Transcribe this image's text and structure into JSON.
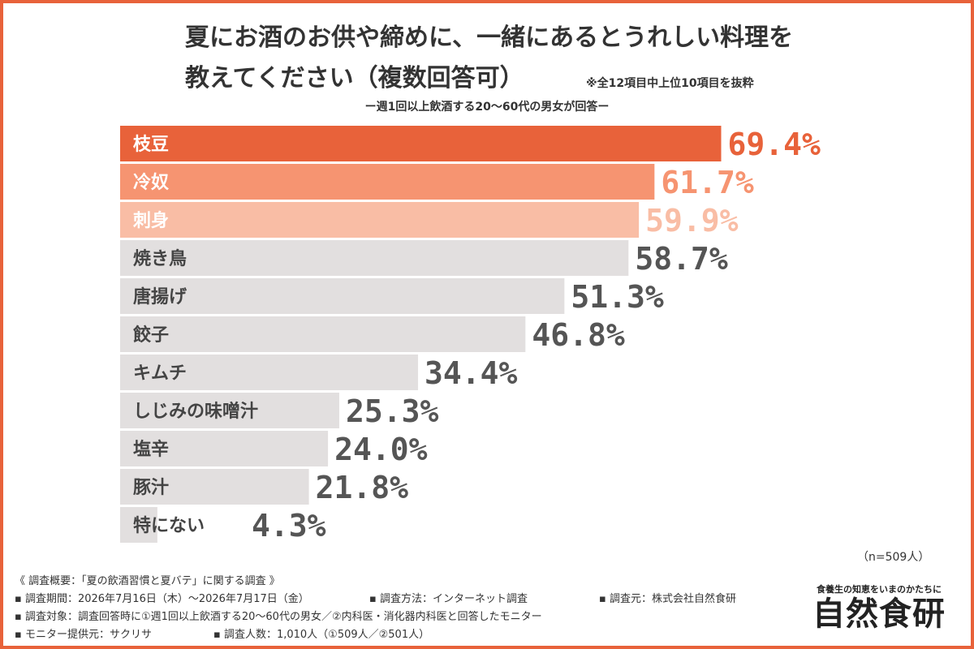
{
  "title_line1": "夏にお酒のお供や締めに、一緒にあるとうれしい料理を",
  "title_line2": "教えてください（複数回答可）",
  "note": "※全12項目中上位10項目を抜粋",
  "subtitle": "ー週1回以上飲酒する20〜60代の男女が回答ー",
  "sample_size": "（n=509人）",
  "chart_data": {
    "type": "bar",
    "orientation": "horizontal",
    "categories": [
      "枝豆",
      "冷奴",
      "刺身",
      "焼き鳥",
      "唐揚げ",
      "餃子",
      "キムチ",
      "しじみの味噌汁",
      "塩辛",
      "豚汁",
      "特にない"
    ],
    "values": [
      69.4,
      61.7,
      59.9,
      58.7,
      51.3,
      46.8,
      34.4,
      25.3,
      24.0,
      21.8,
      4.3
    ],
    "value_labels": [
      "69.4%",
      "61.7%",
      "59.9%",
      "58.7%",
      "51.3%",
      "46.8%",
      "34.4%",
      "25.3%",
      "24.0%",
      "21.8%",
      "4.3%"
    ],
    "unit": "%",
    "xlim": [
      0,
      70
    ],
    "bar_colors": [
      "#e8623a",
      "#f69471",
      "#f9bda5",
      "#e2dfdf",
      "#e2dfdf",
      "#e2dfdf",
      "#e2dfdf",
      "#e2dfdf",
      "#e2dfdf",
      "#e2dfdf",
      "#e2dfdf"
    ],
    "label_colors": [
      "#ffffff",
      "#ffffff",
      "#ffffff",
      "#444444",
      "#444444",
      "#444444",
      "#444444",
      "#444444",
      "#444444",
      "#444444",
      "#444444"
    ],
    "value_colors": [
      "#e8623a",
      "#f69471",
      "#f9bda5",
      "#555555",
      "#555555",
      "#555555",
      "#555555",
      "#555555",
      "#555555",
      "#555555",
      "#555555"
    ],
    "grid": false,
    "legend": "none"
  },
  "footer": {
    "heading": "《 調査概要：「夏の飲酒習慣と夏バテ」に関する調査 》",
    "period": "▪ 調査期間：2026年7月16日（木）〜2026年7月17日（金）",
    "method": "▪ 調査方法：インターネット調査",
    "source": "▪ 調査元：株式会社自然食研",
    "target": "▪ 調査対象：調査回答時に①週1回以上飲酒する20〜60代の男女／②内科医・消化器内科医と回答したモニター",
    "provider": "▪ モニター提供元：サクリサ",
    "count": "▪ 調査人数：1,010人（①509人／②501人）"
  },
  "brand": {
    "tagline": "食養生の知恵をいまのかたちに",
    "name": "自然食研"
  }
}
